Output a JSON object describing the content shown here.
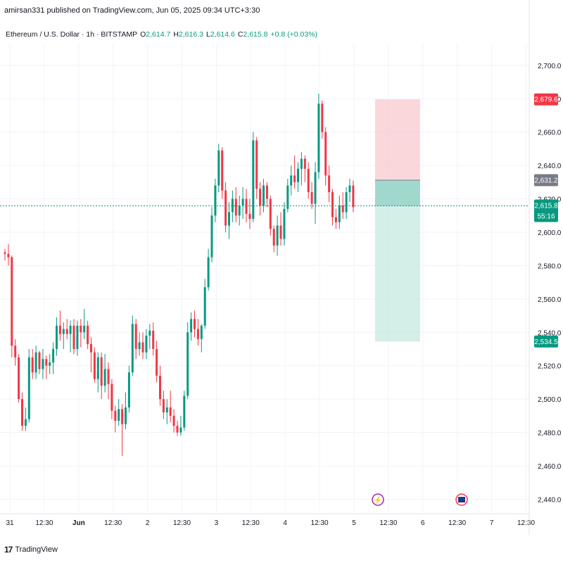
{
  "banner": "amirsan331 published on TradingView.com, Jun 05, 2025 09:34 UTC+3:30",
  "legend": {
    "symbol": "Ethereum / U.S. Dollar · 1h · BITSTAMP",
    "open_label": "O",
    "open": "2,614.7",
    "high_label": "H",
    "high": "2,616.3",
    "low_label": "L",
    "low": "2,614.6",
    "close_label": "C",
    "close": "2,615.8",
    "change": "+0.8 (+0.03%)"
  },
  "footer": {
    "brand": "TradingView"
  },
  "chart_data": {
    "type": "candlestick",
    "y_ticks": [
      "2,700.0",
      "2,680.0",
      "2,660.0",
      "2,640.0",
      "2,620.0",
      "2,600.0",
      "2,580.0",
      "2,560.0",
      "2,540.0",
      "2,520.0",
      "2,500.0",
      "2,480.0",
      "2,460.0",
      "2,440.0"
    ],
    "y_tick_values": [
      2700,
      2680,
      2660,
      2640,
      2620,
      2600,
      2580,
      2560,
      2540,
      2520,
      2500,
      2480,
      2460,
      2440
    ],
    "x_ticks": [
      "31",
      "12:30",
      "Jun",
      "12:30",
      "2",
      "12:30",
      "3",
      "12:30",
      "4",
      "12:30",
      "5",
      "12:30",
      "6",
      "12:30",
      "7",
      "12:30"
    ],
    "ylim": [
      2433,
      2713
    ],
    "current_price": {
      "label": "2,615.8",
      "countdown": "55:16",
      "value": 2615.8
    },
    "position": {
      "stop": {
        "label": "2,679.6",
        "value": 2679.6
      },
      "entry": {
        "label": "2,631.2",
        "value": 2631.2
      },
      "target": {
        "label": "2,534.5",
        "value": 2534.5
      }
    },
    "colors": {
      "up": "#089981",
      "down": "#f23645",
      "stop_zone": "#f7c9cf",
      "target_zone": "#c5e8e0"
    },
    "candles": [
      [
        2588,
        2590,
        2583,
        2587
      ],
      [
        2587,
        2593,
        2580,
        2585
      ],
      [
        2585,
        2586,
        2525,
        2532
      ],
      [
        2532,
        2536,
        2520,
        2525
      ],
      [
        2525,
        2527,
        2498,
        2500
      ],
      [
        2500,
        2504,
        2481,
        2484
      ],
      [
        2484,
        2495,
        2481,
        2488
      ],
      [
        2488,
        2530,
        2486,
        2525
      ],
      [
        2525,
        2530,
        2512,
        2516
      ],
      [
        2516,
        2532,
        2512,
        2528
      ],
      [
        2528,
        2529,
        2515,
        2518
      ],
      [
        2518,
        2530,
        2512,
        2524
      ],
      [
        2524,
        2526,
        2512,
        2520
      ],
      [
        2520,
        2527,
        2515,
        2522
      ],
      [
        2522,
        2534,
        2515,
        2530
      ],
      [
        2530,
        2549,
        2526,
        2544
      ],
      [
        2544,
        2553,
        2535,
        2539
      ],
      [
        2539,
        2546,
        2530,
        2542
      ],
      [
        2542,
        2548,
        2536,
        2539
      ],
      [
        2539,
        2547,
        2528,
        2544
      ],
      [
        2544,
        2548,
        2527,
        2530
      ],
      [
        2530,
        2547,
        2526,
        2544
      ],
      [
        2544,
        2548,
        2531,
        2540
      ],
      [
        2540,
        2554,
        2536,
        2544
      ],
      [
        2544,
        2547,
        2530,
        2533
      ],
      [
        2533,
        2537,
        2516,
        2528
      ],
      [
        2528,
        2531,
        2510,
        2512
      ],
      [
        2512,
        2528,
        2504,
        2525
      ],
      [
        2525,
        2528,
        2500,
        2508
      ],
      [
        2508,
        2527,
        2504,
        2518
      ],
      [
        2518,
        2522,
        2500,
        2509
      ],
      [
        2509,
        2512,
        2488,
        2493
      ],
      [
        2493,
        2496,
        2480,
        2487
      ],
      [
        2487,
        2500,
        2484,
        2494
      ],
      [
        2494,
        2497,
        2466,
        2485
      ],
      [
        2485,
        2504,
        2482,
        2495
      ],
      [
        2495,
        2520,
        2492,
        2516
      ],
      [
        2516,
        2550,
        2514,
        2545
      ],
      [
        2545,
        2548,
        2524,
        2530
      ],
      [
        2530,
        2540,
        2526,
        2534
      ],
      [
        2534,
        2540,
        2524,
        2528
      ],
      [
        2528,
        2542,
        2524,
        2538
      ],
      [
        2538,
        2545,
        2530,
        2541
      ],
      [
        2541,
        2546,
        2526,
        2530
      ],
      [
        2530,
        2535,
        2510,
        2514
      ],
      [
        2514,
        2520,
        2496,
        2500
      ],
      [
        2500,
        2505,
        2488,
        2492
      ],
      [
        2492,
        2500,
        2485,
        2495
      ],
      [
        2495,
        2505,
        2486,
        2490
      ],
      [
        2490,
        2494,
        2480,
        2484
      ],
      [
        2484,
        2487,
        2478,
        2480
      ],
      [
        2480,
        2490,
        2478,
        2483
      ],
      [
        2483,
        2505,
        2481,
        2502
      ],
      [
        2502,
        2546,
        2500,
        2540
      ],
      [
        2540,
        2552,
        2535,
        2548
      ],
      [
        2548,
        2553,
        2537,
        2542
      ],
      [
        2542,
        2548,
        2532,
        2536
      ],
      [
        2536,
        2545,
        2528,
        2544
      ],
      [
        2544,
        2572,
        2542,
        2567
      ],
      [
        2567,
        2590,
        2565,
        2585
      ],
      [
        2585,
        2615,
        2582,
        2610
      ],
      [
        2610,
        2632,
        2606,
        2628
      ],
      [
        2628,
        2653,
        2624,
        2649
      ],
      [
        2649,
        2651,
        2620,
        2625
      ],
      [
        2625,
        2630,
        2600,
        2604
      ],
      [
        2604,
        2618,
        2596,
        2612
      ],
      [
        2612,
        2625,
        2606,
        2620
      ],
      [
        2620,
        2627,
        2606,
        2610
      ],
      [
        2610,
        2622,
        2604,
        2616
      ],
      [
        2616,
        2627,
        2608,
        2620
      ],
      [
        2620,
        2626,
        2606,
        2611
      ],
      [
        2611,
        2620,
        2602,
        2608
      ],
      [
        2608,
        2660,
        2606,
        2655
      ],
      [
        2655,
        2657,
        2620,
        2626
      ],
      [
        2626,
        2630,
        2610,
        2616
      ],
      [
        2616,
        2632,
        2612,
        2628
      ],
      [
        2628,
        2630,
        2615,
        2620
      ],
      [
        2620,
        2622,
        2598,
        2602
      ],
      [
        2602,
        2604,
        2588,
        2592
      ],
      [
        2592,
        2610,
        2586,
        2604
      ],
      [
        2604,
        2612,
        2592,
        2596
      ],
      [
        2596,
        2618,
        2592,
        2614
      ],
      [
        2614,
        2632,
        2612,
        2628
      ],
      [
        2628,
        2640,
        2622,
        2634
      ],
      [
        2634,
        2646,
        2626,
        2630
      ],
      [
        2630,
        2642,
        2624,
        2638
      ],
      [
        2638,
        2648,
        2628,
        2644
      ],
      [
        2644,
        2646,
        2630,
        2638
      ],
      [
        2638,
        2642,
        2620,
        2624
      ],
      [
        2624,
        2630,
        2614,
        2617
      ],
      [
        2617,
        2642,
        2605,
        2636
      ],
      [
        2636,
        2683,
        2632,
        2677
      ],
      [
        2677,
        2679,
        2656,
        2660
      ],
      [
        2660,
        2663,
        2628,
        2634
      ],
      [
        2634,
        2640,
        2618,
        2624
      ],
      [
        2624,
        2626,
        2604,
        2609
      ],
      [
        2609,
        2614,
        2602,
        2606
      ],
      [
        2606,
        2622,
        2602,
        2616
      ],
      [
        2616,
        2624,
        2608,
        2612
      ],
      [
        2612,
        2627,
        2608,
        2624
      ],
      [
        2624,
        2632,
        2618,
        2628
      ],
      [
        2628,
        2631,
        2612,
        2615
      ]
    ]
  }
}
